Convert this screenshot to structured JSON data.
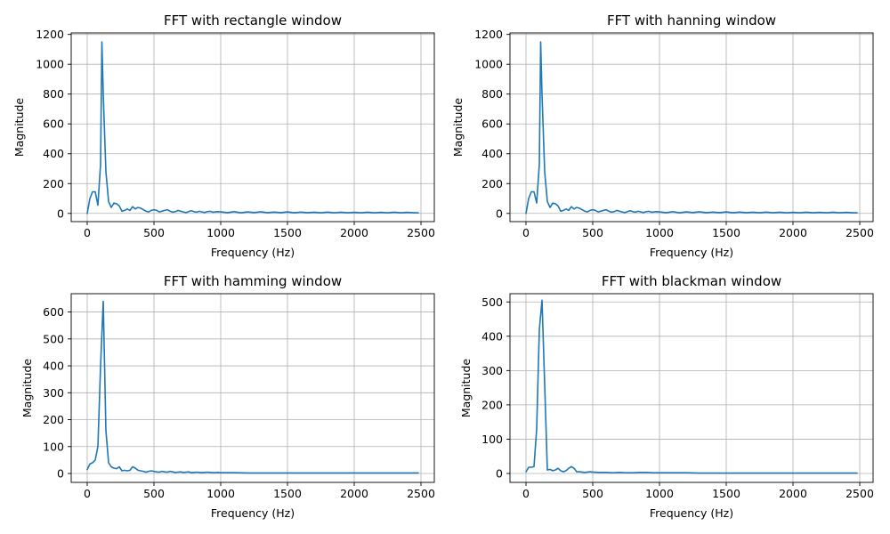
{
  "figure": {
    "background": "#ffffff",
    "line_color": "#1f77b4"
  },
  "chart_data": [
    {
      "type": "line",
      "title": "FFT with rectangle window",
      "xlabel": "Frequency (Hz)",
      "ylabel": "Magnitude",
      "xlim": [
        -120,
        2600
      ],
      "ylim": [
        -55,
        1210
      ],
      "xticks": [
        0,
        500,
        1000,
        1500,
        2000,
        2500
      ],
      "yticks": [
        0,
        200,
        400,
        600,
        800,
        1000,
        1200
      ],
      "grid": true,
      "series": [
        {
          "x": [
            0,
            20,
            40,
            60,
            80,
            100,
            110,
            120,
            140,
            160,
            180,
            200,
            220,
            240,
            260,
            280,
            300,
            320,
            340,
            360,
            380,
            400,
            420,
            440,
            460,
            480,
            500,
            520,
            540,
            560,
            580,
            600,
            620,
            640,
            660,
            680,
            700,
            720,
            740,
            760,
            780,
            800,
            820,
            840,
            860,
            880,
            900,
            920,
            940,
            960,
            980,
            1000,
            1050,
            1100,
            1150,
            1200,
            1250,
            1300,
            1350,
            1400,
            1450,
            1500,
            1550,
            1600,
            1650,
            1700,
            1750,
            1800,
            1850,
            1900,
            1950,
            2000,
            2050,
            2100,
            2150,
            2200,
            2250,
            2300,
            2350,
            2400,
            2450,
            2480
          ],
          "y": [
            0,
            100,
            145,
            145,
            55,
            330,
            1150,
            800,
            280,
            80,
            40,
            70,
            65,
            50,
            15,
            20,
            30,
            20,
            45,
            30,
            40,
            35,
            25,
            15,
            10,
            20,
            25,
            20,
            10,
            15,
            20,
            25,
            15,
            8,
            12,
            20,
            15,
            10,
            5,
            12,
            18,
            12,
            8,
            14,
            10,
            6,
            12,
            14,
            8,
            10,
            12,
            10,
            5,
            12,
            4,
            10,
            6,
            11,
            5,
            9,
            5,
            10,
            4,
            9,
            5,
            8,
            4,
            9,
            4,
            8,
            4,
            7,
            4,
            8,
            4,
            7,
            4,
            8,
            4,
            7,
            4,
            4
          ]
        }
      ]
    },
    {
      "type": "line",
      "title": "FFT with hanning window",
      "xlabel": "Frequency (Hz)",
      "ylabel": "Magnitude",
      "xlim": [
        -120,
        2600
      ],
      "ylim": [
        -55,
        1210
      ],
      "xticks": [
        0,
        500,
        1000,
        1500,
        2000,
        2500
      ],
      "yticks": [
        0,
        200,
        400,
        600,
        800,
        1000,
        1200
      ],
      "grid": true,
      "series": [
        {
          "x": [
            0,
            20,
            40,
            60,
            80,
            100,
            110,
            120,
            140,
            160,
            180,
            200,
            220,
            240,
            260,
            280,
            300,
            320,
            340,
            360,
            380,
            400,
            420,
            440,
            460,
            480,
            500,
            520,
            540,
            560,
            580,
            600,
            620,
            640,
            660,
            680,
            700,
            720,
            740,
            760,
            780,
            800,
            820,
            840,
            860,
            880,
            900,
            920,
            940,
            960,
            980,
            1000,
            1050,
            1100,
            1150,
            1200,
            1250,
            1300,
            1350,
            1400,
            1450,
            1500,
            1550,
            1600,
            1650,
            1700,
            1750,
            1800,
            1850,
            1900,
            1950,
            2000,
            2050,
            2100,
            2150,
            2200,
            2250,
            2300,
            2350,
            2400,
            2450,
            2480
          ],
          "y": [
            0,
            100,
            145,
            145,
            70,
            330,
            1150,
            800,
            280,
            80,
            40,
            70,
            65,
            50,
            15,
            20,
            30,
            20,
            45,
            30,
            40,
            35,
            25,
            15,
            10,
            20,
            25,
            20,
            10,
            15,
            20,
            25,
            15,
            8,
            12,
            20,
            15,
            10,
            5,
            12,
            18,
            12,
            8,
            14,
            10,
            6,
            12,
            14,
            8,
            10,
            12,
            10,
            5,
            12,
            4,
            10,
            6,
            11,
            5,
            9,
            5,
            10,
            4,
            9,
            5,
            8,
            4,
            9,
            4,
            8,
            4,
            7,
            4,
            8,
            4,
            7,
            4,
            8,
            4,
            7,
            4,
            4
          ]
        }
      ]
    },
    {
      "type": "line",
      "title": "FFT with hamming window",
      "xlabel": "Frequency (Hz)",
      "ylabel": "Magnitude",
      "xlim": [
        -120,
        2600
      ],
      "ylim": [
        -33,
        668
      ],
      "xticks": [
        0,
        500,
        1000,
        1500,
        2000,
        2500
      ],
      "yticks": [
        0,
        100,
        200,
        300,
        400,
        500,
        600
      ],
      "grid": true,
      "series": [
        {
          "x": [
            0,
            20,
            40,
            60,
            80,
            100,
            120,
            140,
            160,
            180,
            200,
            220,
            240,
            260,
            280,
            300,
            320,
            340,
            360,
            380,
            400,
            420,
            440,
            460,
            480,
            500,
            520,
            540,
            560,
            580,
            600,
            620,
            640,
            660,
            680,
            700,
            720,
            740,
            760,
            780,
            800,
            820,
            840,
            860,
            880,
            900,
            920,
            940,
            960,
            980,
            1000,
            1100,
            1200,
            1300,
            1400,
            1500,
            1600,
            1700,
            1800,
            1900,
            2000,
            2100,
            2200,
            2300,
            2400,
            2480
          ],
          "y": [
            15,
            35,
            40,
            50,
            100,
            400,
            640,
            160,
            40,
            25,
            20,
            18,
            25,
            10,
            12,
            10,
            12,
            25,
            20,
            12,
            10,
            8,
            5,
            8,
            10,
            8,
            6,
            5,
            8,
            6,
            5,
            8,
            6,
            4,
            5,
            6,
            4,
            5,
            6,
            3,
            4,
            5,
            4,
            3,
            4,
            5,
            4,
            3,
            3,
            4,
            3,
            3,
            2,
            2,
            2,
            2,
            2,
            2,
            2,
            2,
            2,
            2,
            2,
            2,
            2,
            2
          ]
        }
      ]
    },
    {
      "type": "line",
      "title": "FFT with blackman window",
      "xlabel": "Frequency (Hz)",
      "ylabel": "Magnitude",
      "xlim": [
        -120,
        2600
      ],
      "ylim": [
        -26,
        524
      ],
      "xticks": [
        0,
        500,
        1000,
        1500,
        2000,
        2500
      ],
      "yticks": [
        0,
        100,
        200,
        300,
        400,
        500
      ],
      "grid": true,
      "series": [
        {
          "x": [
            0,
            20,
            40,
            60,
            80,
            100,
            120,
            140,
            160,
            180,
            200,
            220,
            240,
            260,
            280,
            300,
            320,
            340,
            360,
            380,
            400,
            420,
            440,
            460,
            480,
            500,
            550,
            600,
            650,
            700,
            750,
            800,
            850,
            900,
            950,
            1000,
            1100,
            1200,
            1300,
            1400,
            1500,
            1600,
            1700,
            1800,
            1900,
            2000,
            2100,
            2200,
            2300,
            2400,
            2480
          ],
          "y": [
            5,
            18,
            18,
            20,
            130,
            420,
            505,
            260,
            10,
            12,
            8,
            10,
            15,
            8,
            5,
            8,
            15,
            20,
            15,
            5,
            5,
            4,
            3,
            4,
            5,
            4,
            3,
            3,
            2,
            3,
            2,
            2,
            3,
            3,
            2,
            2,
            2,
            2,
            1,
            1,
            1,
            1,
            1,
            1,
            1,
            1,
            1,
            1,
            1,
            1,
            1
          ]
        }
      ]
    }
  ]
}
